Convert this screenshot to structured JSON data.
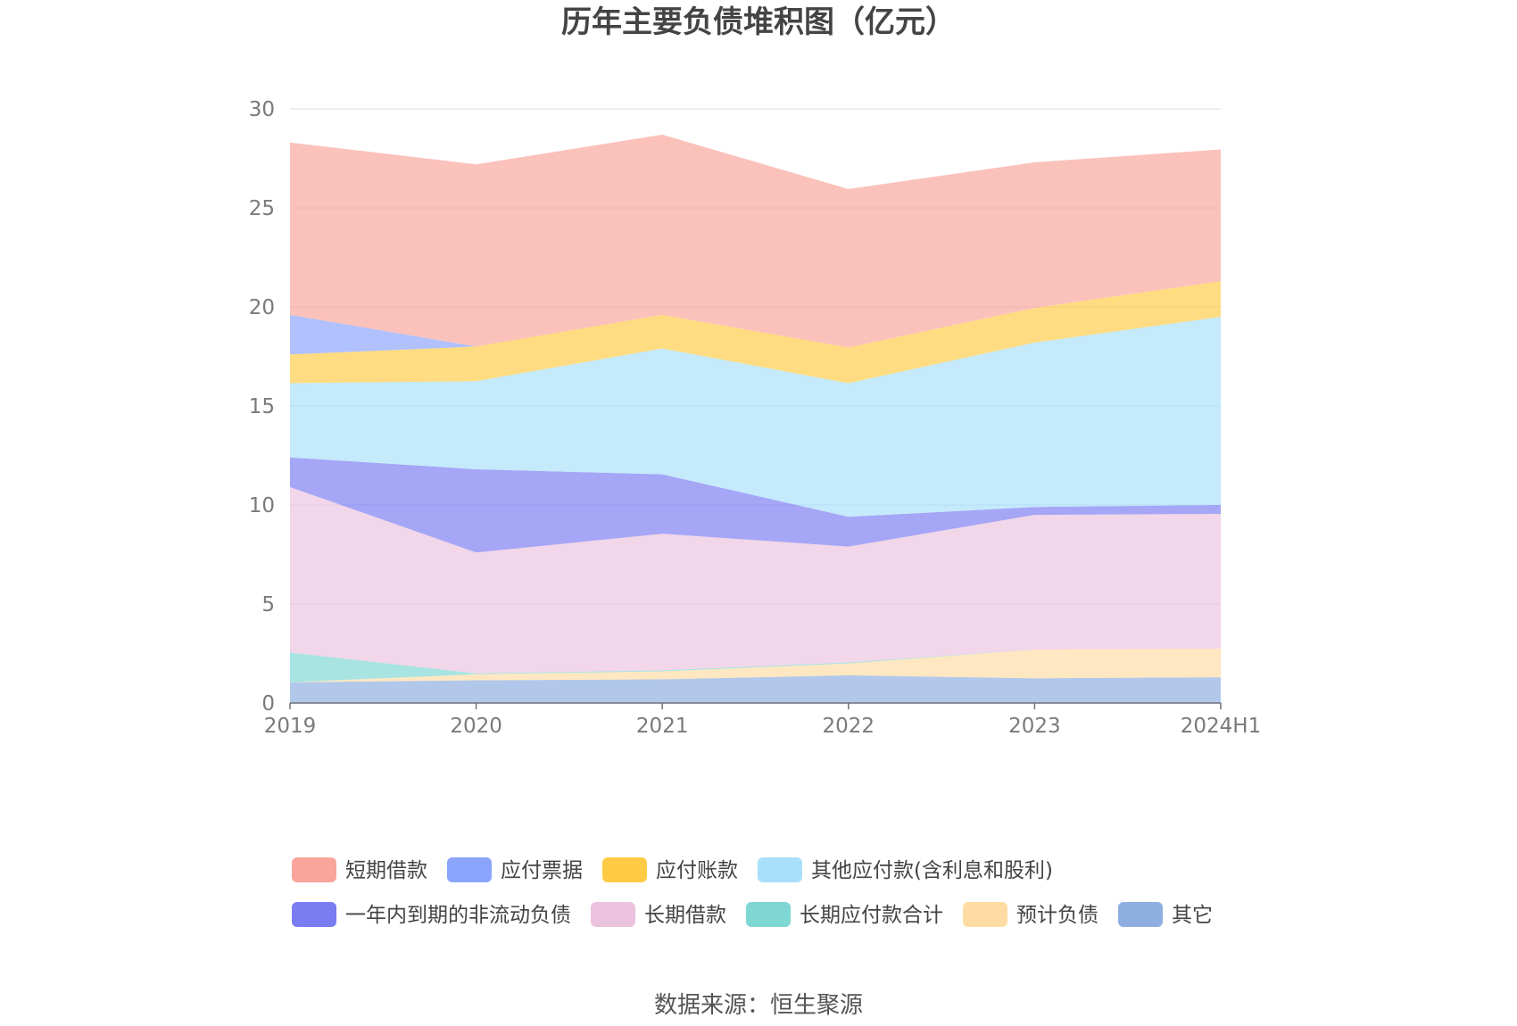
{
  "chart_data": {
    "type": "area",
    "stacked": true,
    "title": "历年主要负债堆积图（亿元）",
    "source": "数据来源：恒生聚源",
    "categories": [
      "2019",
      "2020",
      "2021",
      "2022",
      "2023",
      "2024H1"
    ],
    "ylim": [
      0,
      30
    ],
    "yticks": [
      "0",
      "5",
      "10",
      "15",
      "20",
      "25",
      "30"
    ],
    "grid": true,
    "legend_position": "bottom",
    "series": [
      {
        "name": "其它",
        "color": "#8eaee0",
        "values": [
          1.05,
          1.15,
          1.2,
          1.4,
          1.25,
          1.3
        ]
      },
      {
        "name": "预计负债",
        "color": "#ffdca3",
        "values": [
          0.0,
          0.3,
          0.4,
          0.6,
          1.45,
          1.45
        ]
      },
      {
        "name": "长期应付款合计",
        "color": "#7fd7d3",
        "values": [
          1.5,
          0.05,
          0.05,
          0.05,
          0.0,
          0.0
        ]
      },
      {
        "name": "长期借款",
        "color": "#ecc3de",
        "values": [
          8.35,
          6.1,
          6.9,
          5.85,
          6.8,
          6.8
        ]
      },
      {
        "name": "一年内到期的非流动负债",
        "color": "#7a7cf2",
        "values": [
          1.5,
          4.2,
          3.0,
          1.5,
          0.4,
          0.45
        ]
      },
      {
        "name": "其他应付款(含利息和股利)",
        "color": "#a8e0fb",
        "values": [
          3.75,
          4.45,
          6.35,
          6.75,
          8.3,
          9.5
        ]
      },
      {
        "name": "应付账款",
        "color": "#ffcb45",
        "values": [
          1.45,
          1.75,
          1.7,
          1.8,
          1.75,
          1.8
        ]
      },
      {
        "name": "应付票据",
        "color": "#8aa4fc",
        "values": [
          2.0,
          0.0,
          0.0,
          0.0,
          0.0,
          0.0
        ]
      },
      {
        "name": "短期借款",
        "color": "#f9a59b",
        "values": [
          8.7,
          9.2,
          9.1,
          8.0,
          7.35,
          6.65
        ]
      }
    ],
    "legend_order": [
      "短期借款",
      "应付票据",
      "应付账款",
      "其他应付款(含利息和股利)",
      "一年内到期的非流动负债",
      "长期借款",
      "长期应付款合计",
      "预计负债",
      "其它"
    ]
  }
}
